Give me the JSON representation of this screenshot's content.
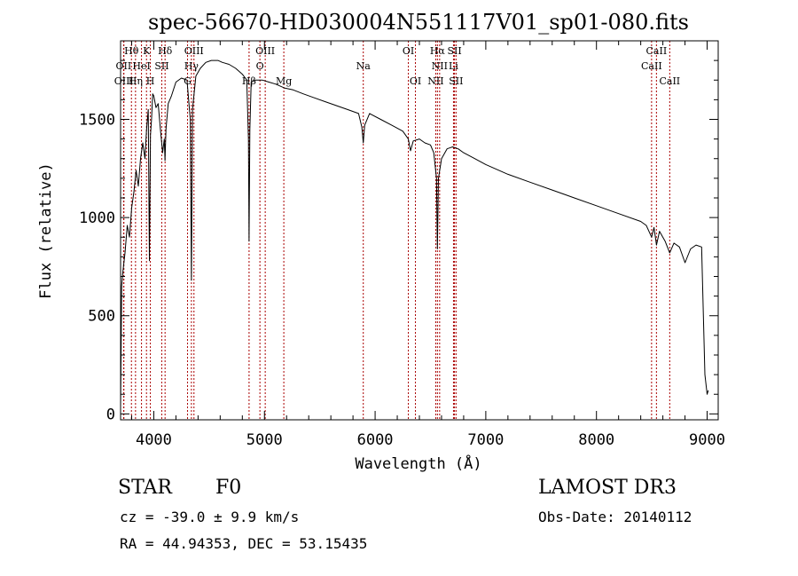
{
  "chart_data": {
    "type": "line",
    "title": "spec-56670-HD030004N551117V01_sp01-080.fits",
    "xlabel": "Wavelength (Å)",
    "ylabel": "Flux (relative)",
    "xlim": [
      3700,
      9100
    ],
    "ylim": [
      -30,
      1900
    ],
    "xticks": [
      4000,
      5000,
      6000,
      7000,
      8000,
      9000
    ],
    "yticks": [
      0,
      500,
      1000,
      1500
    ],
    "series": [
      {
        "name": "spectrum",
        "x": [
          3700,
          3710,
          3720,
          3740,
          3760,
          3780,
          3800,
          3820,
          3840,
          3860,
          3880,
          3900,
          3920,
          3935,
          3950,
          3960,
          3970,
          3980,
          3990,
          4000,
          4020,
          4040,
          4060,
          4080,
          4095,
          4101,
          4110,
          4130,
          4160,
          4200,
          4250,
          4300,
          4330,
          4340,
          4350,
          4380,
          4420,
          4470,
          4520,
          4580,
          4620,
          4680,
          4740,
          4800,
          4840,
          4855,
          4861,
          4868,
          4880,
          4920,
          4980,
          5040,
          5100,
          5180,
          5260,
          5350,
          5450,
          5550,
          5650,
          5750,
          5850,
          5880,
          5893,
          5906,
          5950,
          6050,
          6150,
          6250,
          6300,
          6320,
          6345,
          6400,
          6450,
          6500,
          6530,
          6555,
          6563,
          6572,
          6600,
          6650,
          6700,
          6750,
          6800,
          6900,
          7000,
          7200,
          7400,
          7600,
          7800,
          8000,
          8200,
          8400,
          8450,
          8498,
          8520,
          8542,
          8570,
          8620,
          8662,
          8700,
          8750,
          8800,
          8850,
          8900,
          8950,
          8980,
          9000,
          9010
        ],
        "values": [
          30,
          650,
          720,
          820,
          960,
          900,
          1050,
          1130,
          1240,
          1160,
          1300,
          1380,
          1300,
          1450,
          1550,
          780,
          1420,
          1500,
          1630,
          1620,
          1560,
          1580,
          1450,
          1330,
          1400,
          1290,
          1450,
          1580,
          1620,
          1690,
          1710,
          1700,
          1500,
          680,
          1550,
          1720,
          1760,
          1790,
          1800,
          1800,
          1790,
          1780,
          1760,
          1730,
          1700,
          1400,
          880,
          1450,
          1690,
          1700,
          1700,
          1690,
          1680,
          1660,
          1650,
          1630,
          1610,
          1590,
          1570,
          1550,
          1530,
          1460,
          1380,
          1470,
          1530,
          1500,
          1470,
          1440,
          1400,
          1340,
          1390,
          1400,
          1380,
          1370,
          1330,
          1200,
          840,
          1200,
          1300,
          1350,
          1360,
          1350,
          1330,
          1300,
          1270,
          1220,
          1180,
          1140,
          1100,
          1060,
          1020,
          980,
          960,
          900,
          950,
          860,
          930,
          880,
          820,
          870,
          850,
          770,
          840,
          860,
          850,
          200,
          100,
          120
        ]
      }
    ],
    "line_markers": [
      {
        "label": "Hθ",
        "wavelength": 3798,
        "row": 1
      },
      {
        "label": "OII",
        "wavelength": 3727,
        "row": 2
      },
      {
        "label": "OIII",
        "wavelength": 3730,
        "row": 3
      },
      {
        "label": "Hη",
        "wavelength": 3835,
        "row": 3
      },
      {
        "label": "HeI",
        "wavelength": 3889,
        "row": 2
      },
      {
        "label": "K",
        "wavelength": 3934,
        "row": 1
      },
      {
        "label": "H",
        "wavelength": 3969,
        "row": 3
      },
      {
        "label": "Hδ",
        "wavelength": 4102,
        "row": 1
      },
      {
        "label": "SII",
        "wavelength": 4072,
        "row": 2
      },
      {
        "label": "OIII",
        "wavelength": 4363,
        "row": 1
      },
      {
        "label": "Hγ",
        "wavelength": 4340,
        "row": 2
      },
      {
        "label": "G",
        "wavelength": 4305,
        "row": 3
      },
      {
        "label": "OIII",
        "wavelength": 5007,
        "row": 1
      },
      {
        "label": "O",
        "wavelength": 4959,
        "row": 2
      },
      {
        "label": "Hβ",
        "wavelength": 4861,
        "row": 3
      },
      {
        "label": "Mg",
        "wavelength": 5175,
        "row": 3
      },
      {
        "label": "Na",
        "wavelength": 5893,
        "row": 2
      },
      {
        "label": "OI",
        "wavelength": 6300,
        "row": 1
      },
      {
        "label": "OI",
        "wavelength": 6364,
        "row": 3
      },
      {
        "label": "Hα",
        "wavelength": 6563,
        "row": 1
      },
      {
        "label": "NII",
        "wavelength": 6583,
        "row": 2
      },
      {
        "label": "NII",
        "wavelength": 6548,
        "row": 3
      },
      {
        "label": "SII",
        "wavelength": 6717,
        "row": 1
      },
      {
        "label": "Li",
        "wavelength": 6708,
        "row": 2
      },
      {
        "label": "SII",
        "wavelength": 6731,
        "row": 3
      },
      {
        "label": "CaII",
        "wavelength": 8542,
        "row": 1
      },
      {
        "label": "CaII",
        "wavelength": 8498,
        "row": 2
      },
      {
        "label": "CaII",
        "wavelength": 8662,
        "row": 3
      }
    ]
  },
  "info": {
    "object_type": "STAR",
    "subclass": "F0",
    "survey": "LAMOST DR3",
    "redshift": "cz = -39.0 ± 9.9 km/s",
    "obs_date": "Obs-Date: 20140112",
    "coords": "RA =  44.94353, DEC =  53.15435"
  },
  "colors": {
    "axes": "#000000",
    "spectrum": "#000000",
    "marker_line": "#aa0000",
    "background": "#ffffff"
  }
}
